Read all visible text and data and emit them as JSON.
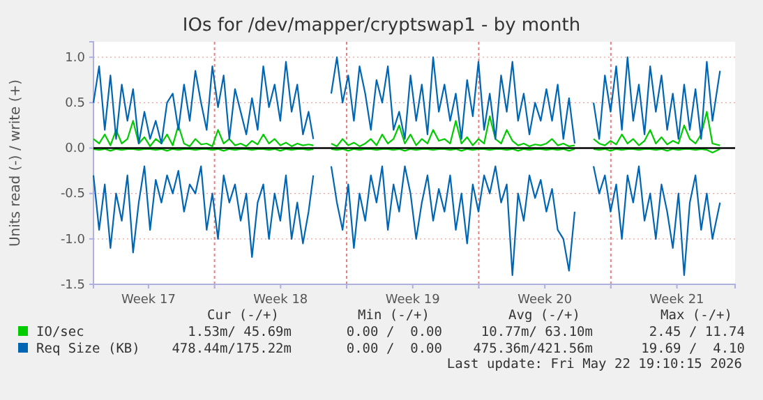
{
  "chart_data": {
    "type": "line",
    "title": "IOs for /dev/mapper/cryptswap1 - by month",
    "ylabel": "Units read (-) / write (+)",
    "x": [
      "2026-04-19T14:00",
      "2026-04-19T21:12",
      "2026-04-20T04:24",
      "2026-04-20T11:36",
      "2026-04-20T18:48",
      "2026-04-21T02:00",
      "2026-04-21T09:12",
      "2026-04-21T16:24",
      "2026-04-21T23:36",
      "2026-04-22T06:48",
      "2026-04-22T14:00",
      "2026-04-22T21:12",
      "2026-04-23T04:24",
      "2026-04-23T11:36",
      "2026-04-23T18:48",
      "2026-04-24T02:00",
      "2026-04-24T09:12",
      "2026-04-24T16:24",
      "2026-04-24T23:36",
      "2026-04-25T06:48",
      "2026-04-25T14:00",
      "2026-04-25T21:12",
      "2026-04-26T04:24",
      "2026-04-26T11:36",
      "2026-04-26T18:48",
      "2026-04-27T02:00",
      "2026-04-27T09:12",
      "2026-04-27T16:24",
      "2026-04-27T23:36",
      "2026-04-28T06:48",
      "2026-04-28T14:00",
      "2026-04-28T21:12",
      "2026-04-29T04:24",
      "2026-04-29T11:36",
      "2026-04-29T18:48",
      "2026-04-30T02:00",
      "2026-04-30T09:12",
      "2026-04-30T16:24",
      "2026-04-30T23:36",
      "2026-05-01T05:36",
      "2026-05-01T16:24",
      "2026-05-02T04:24",
      "2026-05-02T11:36",
      "2026-05-02T18:48",
      "2026-05-03T02:00",
      "2026-05-03T09:12",
      "2026-05-03T16:24",
      "2026-05-03T23:36",
      "2026-05-04T06:48",
      "2026-05-04T14:00",
      "2026-05-04T21:12",
      "2026-05-05T04:24",
      "2026-05-05T11:36",
      "2026-05-05T18:48",
      "2026-05-06T02:00",
      "2026-05-06T09:12",
      "2026-05-06T16:24",
      "2026-05-06T23:36",
      "2026-05-07T06:48",
      "2026-05-07T14:00",
      "2026-05-07T21:12",
      "2026-05-08T04:24",
      "2026-05-08T11:36",
      "2026-05-08T18:48",
      "2026-05-09T02:00",
      "2026-05-09T09:12",
      "2026-05-09T16:24",
      "2026-05-09T23:36",
      "2026-05-10T06:48",
      "2026-05-10T14:00",
      "2026-05-10T21:12",
      "2026-05-11T04:24",
      "2026-05-11T11:36",
      "2026-05-11T18:48",
      "2026-05-12T02:00",
      "2026-05-12T09:12",
      "2026-05-12T16:24",
      "2026-05-12T23:36",
      "2026-05-13T06:48",
      "2026-05-13T14:00",
      "2026-05-13T21:12",
      "2026-05-14T04:24",
      "2026-05-14T11:36",
      "2026-05-14T18:48",
      "2026-05-15T02:00",
      "2026-05-15T14:00",
      "2026-05-16T02:00",
      "2026-05-16T09:12",
      "2026-05-16T16:24",
      "2026-05-16T23:36",
      "2026-05-17T06:48",
      "2026-05-17T14:00",
      "2026-05-17T21:12",
      "2026-05-18T04:24",
      "2026-05-18T11:36",
      "2026-05-18T18:48",
      "2026-05-19T02:00",
      "2026-05-19T09:12",
      "2026-05-19T16:24",
      "2026-05-19T23:36",
      "2026-05-20T06:48",
      "2026-05-20T14:00",
      "2026-05-20T21:12",
      "2026-05-21T04:24",
      "2026-05-21T11:36",
      "2026-05-21T18:48",
      "2026-05-22T02:00",
      "2026-05-22T09:12",
      "2026-05-22T18:48"
    ],
    "series": [
      {
        "name": "Req Size (KB)",
        "color": "#0066b3",
        "values": [
          0.5,
          0.9,
          0.2,
          0.8,
          0.1,
          0.7,
          0.3,
          0.65,
          0.05,
          0.4,
          0.1,
          0.3,
          0.05,
          0.5,
          0.6,
          0.2,
          0.7,
          0.3,
          0.85,
          0.5,
          0.2,
          0.9,
          0.45,
          0.8,
          0.1,
          0.65,
          0.4,
          0.15,
          0.55,
          0.2,
          0.9,
          0.45,
          0.7,
          0.3,
          0.95,
          0.4,
          0.7,
          0.15,
          0.4,
          0.1,
          null,
          0.6,
          1.0,
          0.5,
          0.8,
          0.3,
          0.9,
          0.6,
          0.2,
          0.75,
          0.5,
          0.9,
          0.2,
          0.4,
          0.1,
          0.8,
          0.3,
          0.7,
          0.15,
          1.0,
          0.4,
          0.7,
          0.3,
          0.6,
          0.1,
          0.75,
          0.35,
          0.95,
          0.2,
          0.6,
          0.1,
          0.8,
          0.4,
          0.95,
          0.3,
          0.6,
          0.15,
          0.5,
          0.3,
          0.65,
          0.3,
          0.7,
          0.1,
          0.55,
          0.05,
          null,
          0.5,
          0.1,
          0.8,
          0.4,
          0.9,
          0.2,
          1.0,
          0.3,
          0.7,
          0.15,
          0.9,
          0.4,
          0.8,
          0.2,
          0.6,
          0.1,
          0.7,
          0.2,
          0.65,
          0.1,
          0.95,
          0.3,
          0.85
        ]
      },
      {
        "color": "#0066b3",
        "values": [
          -0.3,
          -0.9,
          -0.4,
          -1.1,
          -0.5,
          -0.8,
          -0.3,
          -1.15,
          -0.6,
          -0.2,
          -0.9,
          -0.35,
          -0.6,
          -0.3,
          -0.5,
          -0.25,
          -0.7,
          -0.4,
          -0.5,
          -0.2,
          -0.9,
          -0.5,
          -1.0,
          -0.3,
          -0.6,
          -0.4,
          -0.8,
          -0.5,
          -1.2,
          -0.6,
          -0.4,
          -1.0,
          -0.5,
          -0.8,
          -0.3,
          -1.0,
          -0.6,
          -1.05,
          -0.7,
          -0.3,
          null,
          -0.2,
          -0.6,
          -0.9,
          -0.4,
          -1.1,
          -0.5,
          -0.8,
          -0.3,
          -0.6,
          -0.2,
          -0.9,
          -0.4,
          -0.7,
          -0.2,
          -0.5,
          -1.0,
          -0.6,
          -0.3,
          -0.8,
          -0.45,
          -0.7,
          -0.3,
          -0.9,
          -0.5,
          -1.05,
          -0.4,
          -0.7,
          -0.3,
          -0.5,
          -0.2,
          -0.6,
          -0.4,
          -1.4,
          -0.5,
          -0.8,
          -0.3,
          -0.55,
          -0.35,
          -0.7,
          -0.45,
          -0.9,
          -1.0,
          -1.35,
          -0.7,
          null,
          -0.2,
          -0.5,
          -0.3,
          -0.7,
          -0.4,
          -1.0,
          -0.3,
          -0.6,
          -0.2,
          -0.8,
          -0.5,
          -1.0,
          -0.4,
          -0.7,
          -1.1,
          -0.5,
          -1.4,
          -0.6,
          -0.3,
          -0.9,
          -0.5,
          -1.0,
          -0.6
        ]
      },
      {
        "name": "IO/sec",
        "color": "#00cc00",
        "values": [
          0.1,
          0.05,
          0.15,
          0.03,
          0.2,
          0.05,
          0.1,
          0.3,
          0.05,
          0.12,
          0.02,
          0.1,
          0.05,
          0.15,
          0.03,
          0.25,
          0.05,
          0.02,
          0.1,
          0.04,
          0.05,
          0.02,
          0.2,
          0.05,
          0.1,
          0.03,
          0.05,
          0.02,
          0.08,
          0.04,
          0.15,
          0.05,
          0.1,
          0.03,
          0.06,
          0.02,
          0.05,
          0.03,
          0.04,
          0.03,
          null,
          0.05,
          0.02,
          0.1,
          0.03,
          0.06,
          0.02,
          0.05,
          0.1,
          0.03,
          0.15,
          0.05,
          0.1,
          0.25,
          0.05,
          0.15,
          0.03,
          0.1,
          0.05,
          0.2,
          0.08,
          0.1,
          0.05,
          0.3,
          0.05,
          0.12,
          0.03,
          0.1,
          0.05,
          0.35,
          0.1,
          0.05,
          0.2,
          0.08,
          0.03,
          0.05,
          0.02,
          0.04,
          0.03,
          0.05,
          0.1,
          0.03,
          0.05,
          0.02,
          0.03,
          null,
          0.1,
          0.05,
          0.03,
          0.08,
          0.04,
          0.15,
          0.05,
          0.1,
          0.03,
          0.08,
          0.2,
          0.05,
          0.12,
          0.04,
          0.08,
          0.05,
          0.25,
          0.1,
          0.05,
          0.15,
          0.4,
          0.05,
          0.03
        ]
      },
      {
        "color": "#00cc00",
        "values": [
          -0.01,
          -0.02,
          -0.01,
          -0.03,
          -0.01,
          -0.02,
          -0.01,
          -0.01,
          -0.02,
          -0.01,
          -0.01,
          -0.02,
          -0.01,
          -0.03,
          -0.01,
          -0.02,
          -0.01,
          -0.01,
          -0.02,
          -0.01,
          -0.01,
          -0.02,
          -0.01,
          -0.03,
          -0.01,
          -0.02,
          -0.01,
          -0.01,
          -0.02,
          -0.01,
          -0.01,
          -0.02,
          -0.01,
          -0.03,
          -0.01,
          -0.02,
          -0.01,
          -0.01,
          -0.02,
          -0.01,
          null,
          -0.01,
          -0.02,
          -0.01,
          -0.03,
          -0.01,
          -0.02,
          -0.01,
          -0.01,
          -0.02,
          -0.01,
          -0.01,
          -0.02,
          -0.01,
          -0.03,
          -0.01,
          -0.02,
          -0.01,
          -0.01,
          -0.02,
          -0.01,
          -0.01,
          -0.02,
          -0.01,
          -0.03,
          -0.01,
          -0.02,
          -0.01,
          -0.01,
          -0.02,
          -0.01,
          -0.01,
          -0.02,
          -0.01,
          -0.03,
          -0.01,
          -0.02,
          -0.01,
          -0.01,
          -0.02,
          -0.01,
          -0.02,
          -0.01,
          -0.03,
          -0.01,
          null,
          -0.01,
          -0.02,
          -0.01,
          -0.03,
          -0.01,
          -0.02,
          -0.01,
          -0.01,
          -0.02,
          -0.01,
          -0.01,
          -0.02,
          -0.01,
          -0.03,
          -0.01,
          -0.02,
          -0.01,
          -0.01,
          -0.02,
          -0.01,
          -0.02,
          -0.05,
          -0.01
        ]
      }
    ],
    "xlim": [
      "2026-04-19T14:00",
      "2026-05-23T14:00"
    ],
    "xticks": [
      {
        "value": "2026-04-22T12:00",
        "label": "Week 17"
      },
      {
        "value": "2026-04-26T00:00",
        "label": null
      },
      {
        "value": "2026-04-29T12:00",
        "label": "Week 18"
      },
      {
        "value": "2026-05-03T00:00",
        "label": null
      },
      {
        "value": "2026-05-06T12:00",
        "label": "Week 19"
      },
      {
        "value": "2026-05-10T00:00",
        "label": null
      },
      {
        "value": "2026-05-13T12:00",
        "label": "Week 20"
      },
      {
        "value": "2026-05-17T00:00",
        "label": null
      },
      {
        "value": "2026-05-20T12:00",
        "label": "Week 21"
      }
    ],
    "ylim": [
      -1.5,
      1.17
    ],
    "yticks": [
      {
        "value": -1.5,
        "label": "-1.5"
      },
      {
        "value": -1,
        "label": "-1.0"
      },
      {
        "value": -0.5,
        "label": "-0.5"
      },
      {
        "value": 0,
        "label": "0.0"
      },
      {
        "value": 0.5,
        "label": "0.5"
      },
      {
        "value": 1,
        "label": "1.0"
      }
    ],
    "ref_lines": [
      {
        "axis": "y",
        "value": 0,
        "color": "#000000"
      }
    ],
    "grid": true,
    "legend": "bottom",
    "line_style": "solid",
    "marker": "none",
    "annotations": [
      "Cur (-/+)",
      "Min (-/+)",
      "Avg (-/+)",
      "Max (-/+)",
      "1.53m/ 45.69m",
      "0.00 /  0.00",
      "10.77m/ 63.10m",
      "2.45 / 11.74",
      "478.44m/175.22m",
      "0.00 /  0.00",
      "475.36m/421.56m",
      "19.69 /  4.10",
      "Last update: Fri May 22 19:10:15 2026"
    ]
  }
}
